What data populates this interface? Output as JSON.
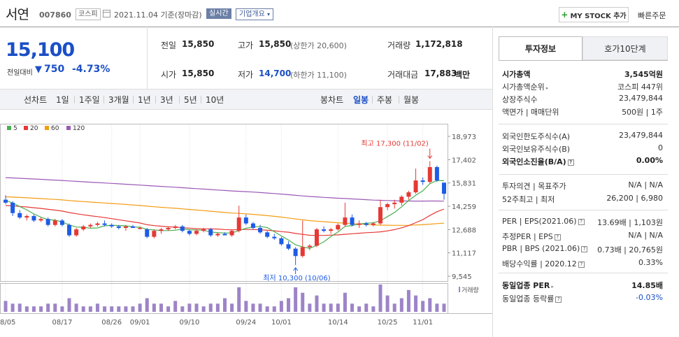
{
  "header": {
    "stock_name": "서연",
    "stock_code": "007860",
    "market": "코스피",
    "date_text": "2021.11.04 기준(장마감)",
    "realtime_label": "실시간",
    "company_label": "기업개요",
    "mystock_label": "MY STOCK 추가",
    "quick_order_label": "빠른주문"
  },
  "price": {
    "current": "15,100",
    "change_label": "전일대비",
    "change_amount": "750",
    "change_rate": "-4.73%"
  },
  "summary": {
    "prev_label": "전일",
    "prev_value": "15,850",
    "high_label": "고가",
    "high_value": "15,850",
    "upper_limit": "(상한가 20,600)",
    "volume_label": "거래량",
    "volume_value": "1,172,818",
    "open_label": "시가",
    "open_value": "15,850",
    "low_label": "저가",
    "low_value": "14,700",
    "lower_limit": "(하한가 11,100)",
    "amount_label": "거래대금",
    "amount_value": "17,883",
    "amount_unit": "백만"
  },
  "periods": {
    "line_label": "선차트",
    "line_items": [
      "1일",
      "1주일",
      "3개월",
      "1년",
      "3년",
      "5년",
      "10년"
    ],
    "candle_label": "봉차트",
    "candle_items": [
      "일봉",
      "주봉",
      "월봉"
    ],
    "active_candle": "일봉"
  },
  "colors": {
    "ma5": "#4caf50",
    "ma20": "#e53935",
    "ma60": "#f39c12",
    "ma120": "#9b59b6",
    "up": "#e53935",
    "down": "#1e5ce6",
    "volume": "#9d84c7"
  },
  "chart_data": {
    "type": "candlestick",
    "legend": [
      "5",
      "20",
      "60",
      "120"
    ],
    "y_ticks": [
      "18,973",
      "17,402",
      "15,831",
      "14,259",
      "12,688",
      "11,117",
      "9,545"
    ],
    "ylim": [
      9545,
      18973
    ],
    "x_labels": [
      "08/05",
      "08/17",
      "08/26",
      "09/01",
      "09/10",
      "09/24",
      "10/01",
      "10/14",
      "10/25",
      "11/01"
    ],
    "x_label_index": [
      0,
      8,
      15,
      19,
      26,
      34,
      39,
      47,
      54,
      59
    ],
    "high_annotation": "최고 17,300 (11/02)",
    "low_annotation": "최저 10,300 (10/06)",
    "volume_label": "거래량",
    "candles": [
      [
        14700,
        15000,
        14400,
        14500
      ],
      [
        14500,
        14600,
        13600,
        13800
      ],
      [
        13800,
        14000,
        13400,
        13500
      ],
      [
        13500,
        13700,
        13300,
        13600
      ],
      [
        13600,
        13700,
        13200,
        13300
      ],
      [
        13300,
        13500,
        13200,
        13400
      ],
      [
        13400,
        13500,
        12900,
        13000
      ],
      [
        13000,
        13400,
        12900,
        13300
      ],
      [
        13300,
        13400,
        12900,
        13000
      ],
      [
        13000,
        13100,
        12200,
        12300
      ],
      [
        12300,
        12800,
        12200,
        12700
      ],
      [
        12700,
        13000,
        12600,
        12900
      ],
      [
        12900,
        13100,
        12800,
        13000
      ],
      [
        13000,
        13200,
        12900,
        13100
      ],
      [
        13100,
        13300,
        12900,
        13000
      ],
      [
        13000,
        13100,
        12800,
        12900
      ],
      [
        12900,
        13000,
        12700,
        12800
      ],
      [
        12800,
        13000,
        12600,
        12900
      ],
      [
        12900,
        13000,
        12800,
        12800
      ],
      [
        12800,
        12900,
        12700,
        12800
      ],
      [
        12700,
        12800,
        12100,
        12200
      ],
      [
        12200,
        12700,
        12100,
        12600
      ],
      [
        12600,
        12800,
        12400,
        12700
      ],
      [
        12700,
        12900,
        12600,
        12800
      ],
      [
        12800,
        13000,
        12700,
        12900
      ],
      [
        12900,
        13000,
        12500,
        12600
      ],
      [
        12600,
        12700,
        12300,
        12400
      ],
      [
        12400,
        12700,
        12300,
        12600
      ],
      [
        12600,
        12800,
        12500,
        12700
      ],
      [
        12700,
        12800,
        12200,
        12300
      ],
      [
        12300,
        12500,
        12200,
        12400
      ],
      [
        12400,
        12500,
        12300,
        12300
      ],
      [
        12300,
        12700,
        12200,
        12600
      ],
      [
        12600,
        14300,
        12500,
        13500
      ],
      [
        13500,
        13700,
        13000,
        13100
      ],
      [
        13100,
        13200,
        12700,
        12800
      ],
      [
        12800,
        13000,
        12400,
        12500
      ],
      [
        12500,
        12600,
        12100,
        12200
      ],
      [
        12200,
        12400,
        12000,
        12100
      ],
      [
        12100,
        12200,
        11600,
        11700
      ],
      [
        11700,
        11900,
        11300,
        11400
      ],
      [
        11400,
        11500,
        10300,
        10900
      ],
      [
        10900,
        13300,
        10800,
        11500
      ],
      [
        11500,
        11700,
        11300,
        11600
      ],
      [
        11600,
        12800,
        11500,
        12700
      ],
      [
        12700,
        12900,
        12500,
        12600
      ],
      [
        12600,
        12800,
        12400,
        12700
      ],
      [
        12700,
        13100,
        12600,
        13000
      ],
      [
        13000,
        14500,
        12900,
        13500
      ],
      [
        13500,
        13700,
        12900,
        13000
      ],
      [
        13000,
        13300,
        12800,
        13100
      ],
      [
        13100,
        13200,
        12900,
        13000
      ],
      [
        13000,
        13200,
        12900,
        13100
      ],
      [
        13100,
        14700,
        13000,
        14200
      ],
      [
        14200,
        14500,
        14000,
        14400
      ],
      [
        14400,
        14700,
        14100,
        14500
      ],
      [
        14500,
        15000,
        14300,
        14900
      ],
      [
        14900,
        15300,
        14700,
        15200
      ],
      [
        15200,
        16800,
        15100,
        16000
      ],
      [
        16000,
        16200,
        15700,
        15900
      ],
      [
        15900,
        17300,
        15800,
        16900
      ],
      [
        16900,
        17000,
        15900,
        16000
      ],
      [
        15850,
        15850,
        14700,
        15100
      ]
    ],
    "volume": [
      4,
      3,
      3,
      2,
      2,
      2,
      3,
      3,
      2,
      5,
      3,
      2,
      2,
      3,
      2,
      2,
      2,
      2,
      2,
      3,
      5,
      3,
      3,
      2,
      4,
      2,
      3,
      3,
      2,
      3,
      3,
      5,
      3,
      9,
      4,
      3,
      3,
      2,
      2,
      4,
      5,
      9,
      7,
      3,
      6,
      3,
      3,
      3,
      7,
      3,
      2,
      3,
      2,
      10,
      6,
      3,
      5,
      8,
      6,
      4,
      5,
      3,
      3
    ]
  },
  "right_panel": {
    "tab_invest": "투자정보",
    "tab_quote": "호가10단계",
    "rows1": [
      {
        "k": "시가총액",
        "v": "3,545억원",
        "bold": true
      },
      {
        "k": "시가총액순위",
        "v": "코스피 447위",
        "tri": true
      },
      {
        "k": "상장주식수",
        "v": "23,479,844"
      },
      {
        "k": "액면가 | 매매단위",
        "v": "500원 | 1주"
      }
    ],
    "rows2": [
      {
        "k": "외국인한도주식수(A)",
        "v": "23,479,844"
      },
      {
        "k": "외국인보유주식수(B)",
        "v": "0"
      },
      {
        "k": "외국인소진율(B/A)",
        "v": "0.00%",
        "bold": true,
        "q": true
      }
    ],
    "rows3": [
      {
        "k": "투자의견 | 목표주가",
        "v": "N/A | N/A"
      },
      {
        "k": "52주최고 | 최저",
        "v": "26,200 | 6,980"
      }
    ],
    "rows4": [
      {
        "k": "PER | EPS(2021.06)",
        "v": "13.69배 | 1,103원",
        "q": true
      },
      {
        "k": "추정PER | EPS",
        "v": "N/A | N/A",
        "q": true
      },
      {
        "k": "PBR | BPS (2021.06)",
        "v": "0.73배 | 20,765원",
        "q": true
      },
      {
        "k": "배당수익률 | 2020.12",
        "v": "0.33%",
        "q": true
      }
    ],
    "rows5": [
      {
        "k": "동일업종 PER",
        "v": "14.85배",
        "bold": true,
        "tri": true
      },
      {
        "k": "동일업종 등락률",
        "v": "-0.03%",
        "blue": true,
        "q": true
      }
    ]
  }
}
